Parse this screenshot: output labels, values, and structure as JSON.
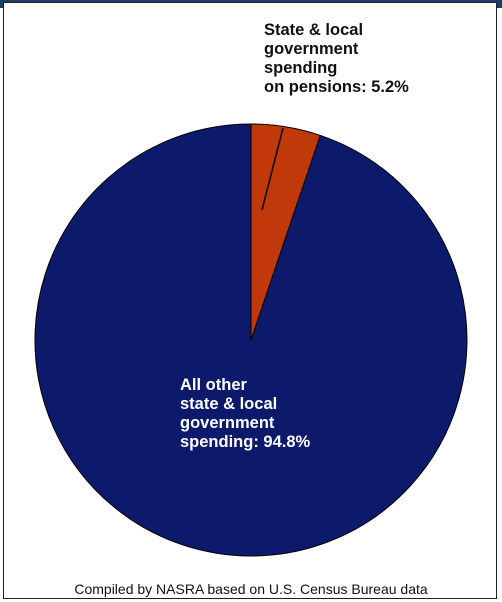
{
  "chart_data": {
    "type": "pie",
    "slices": [
      {
        "label_lines": [
          "State & local",
          "government",
          "spending",
          "on pensions: 5.2%"
        ],
        "value": 5.2,
        "color": "#c1390b"
      },
      {
        "label_lines": [
          "All other",
          "state & local",
          "government",
          "spending: 94.8%"
        ],
        "value": 94.8,
        "color": "#0d1a6b"
      }
    ],
    "start_angle_deg": 0,
    "direction": "clockwise"
  },
  "source_note": "Compiled by NASRA based on U.S. Census Bureau data"
}
